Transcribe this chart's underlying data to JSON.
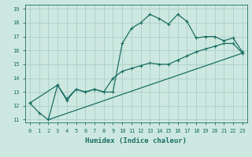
{
  "xlabel": "Humidex (Indice chaleur)",
  "ylabel": "",
  "background_color": "#cde8e0",
  "line_color": "#1a6e64",
  "grid_color": "#aacfc7",
  "xlim": [
    -0.5,
    23.5
  ],
  "ylim": [
    10.8,
    19.3
  ],
  "yticks": [
    11,
    12,
    13,
    14,
    15,
    16,
    17,
    18,
    19
  ],
  "xticks": [
    0,
    1,
    2,
    3,
    4,
    5,
    6,
    7,
    8,
    9,
    10,
    11,
    12,
    13,
    14,
    15,
    16,
    17,
    18,
    19,
    20,
    21,
    22,
    23
  ],
  "line1_x": [
    0,
    1,
    2,
    3,
    4,
    5,
    6,
    7,
    8,
    9,
    10,
    11,
    12,
    13,
    14,
    15,
    16,
    17,
    18,
    19,
    20,
    21,
    22,
    23
  ],
  "line1_y": [
    12.2,
    11.5,
    11.0,
    13.5,
    12.5,
    13.2,
    13.0,
    13.2,
    13.0,
    13.0,
    16.5,
    17.6,
    18.0,
    18.6,
    18.3,
    17.9,
    18.6,
    18.1,
    16.9,
    17.0,
    17.0,
    16.7,
    16.9,
    15.9
  ],
  "line2_x": [
    0,
    3,
    4,
    5,
    6,
    7,
    8,
    9,
    10,
    11,
    12,
    13,
    14,
    15,
    16,
    17,
    18,
    19,
    20,
    21,
    22,
    23
  ],
  "line2_y": [
    12.2,
    13.5,
    12.4,
    13.2,
    13.0,
    13.2,
    13.0,
    14.0,
    14.5,
    14.7,
    14.9,
    15.1,
    15.0,
    15.0,
    15.3,
    15.6,
    15.9,
    16.1,
    16.3,
    16.5,
    16.5,
    15.8
  ],
  "line3_x": [
    2,
    23
  ],
  "line3_y": [
    11.0,
    15.8
  ],
  "tick_fontsize": 5,
  "xlabel_fontsize": 6.5
}
